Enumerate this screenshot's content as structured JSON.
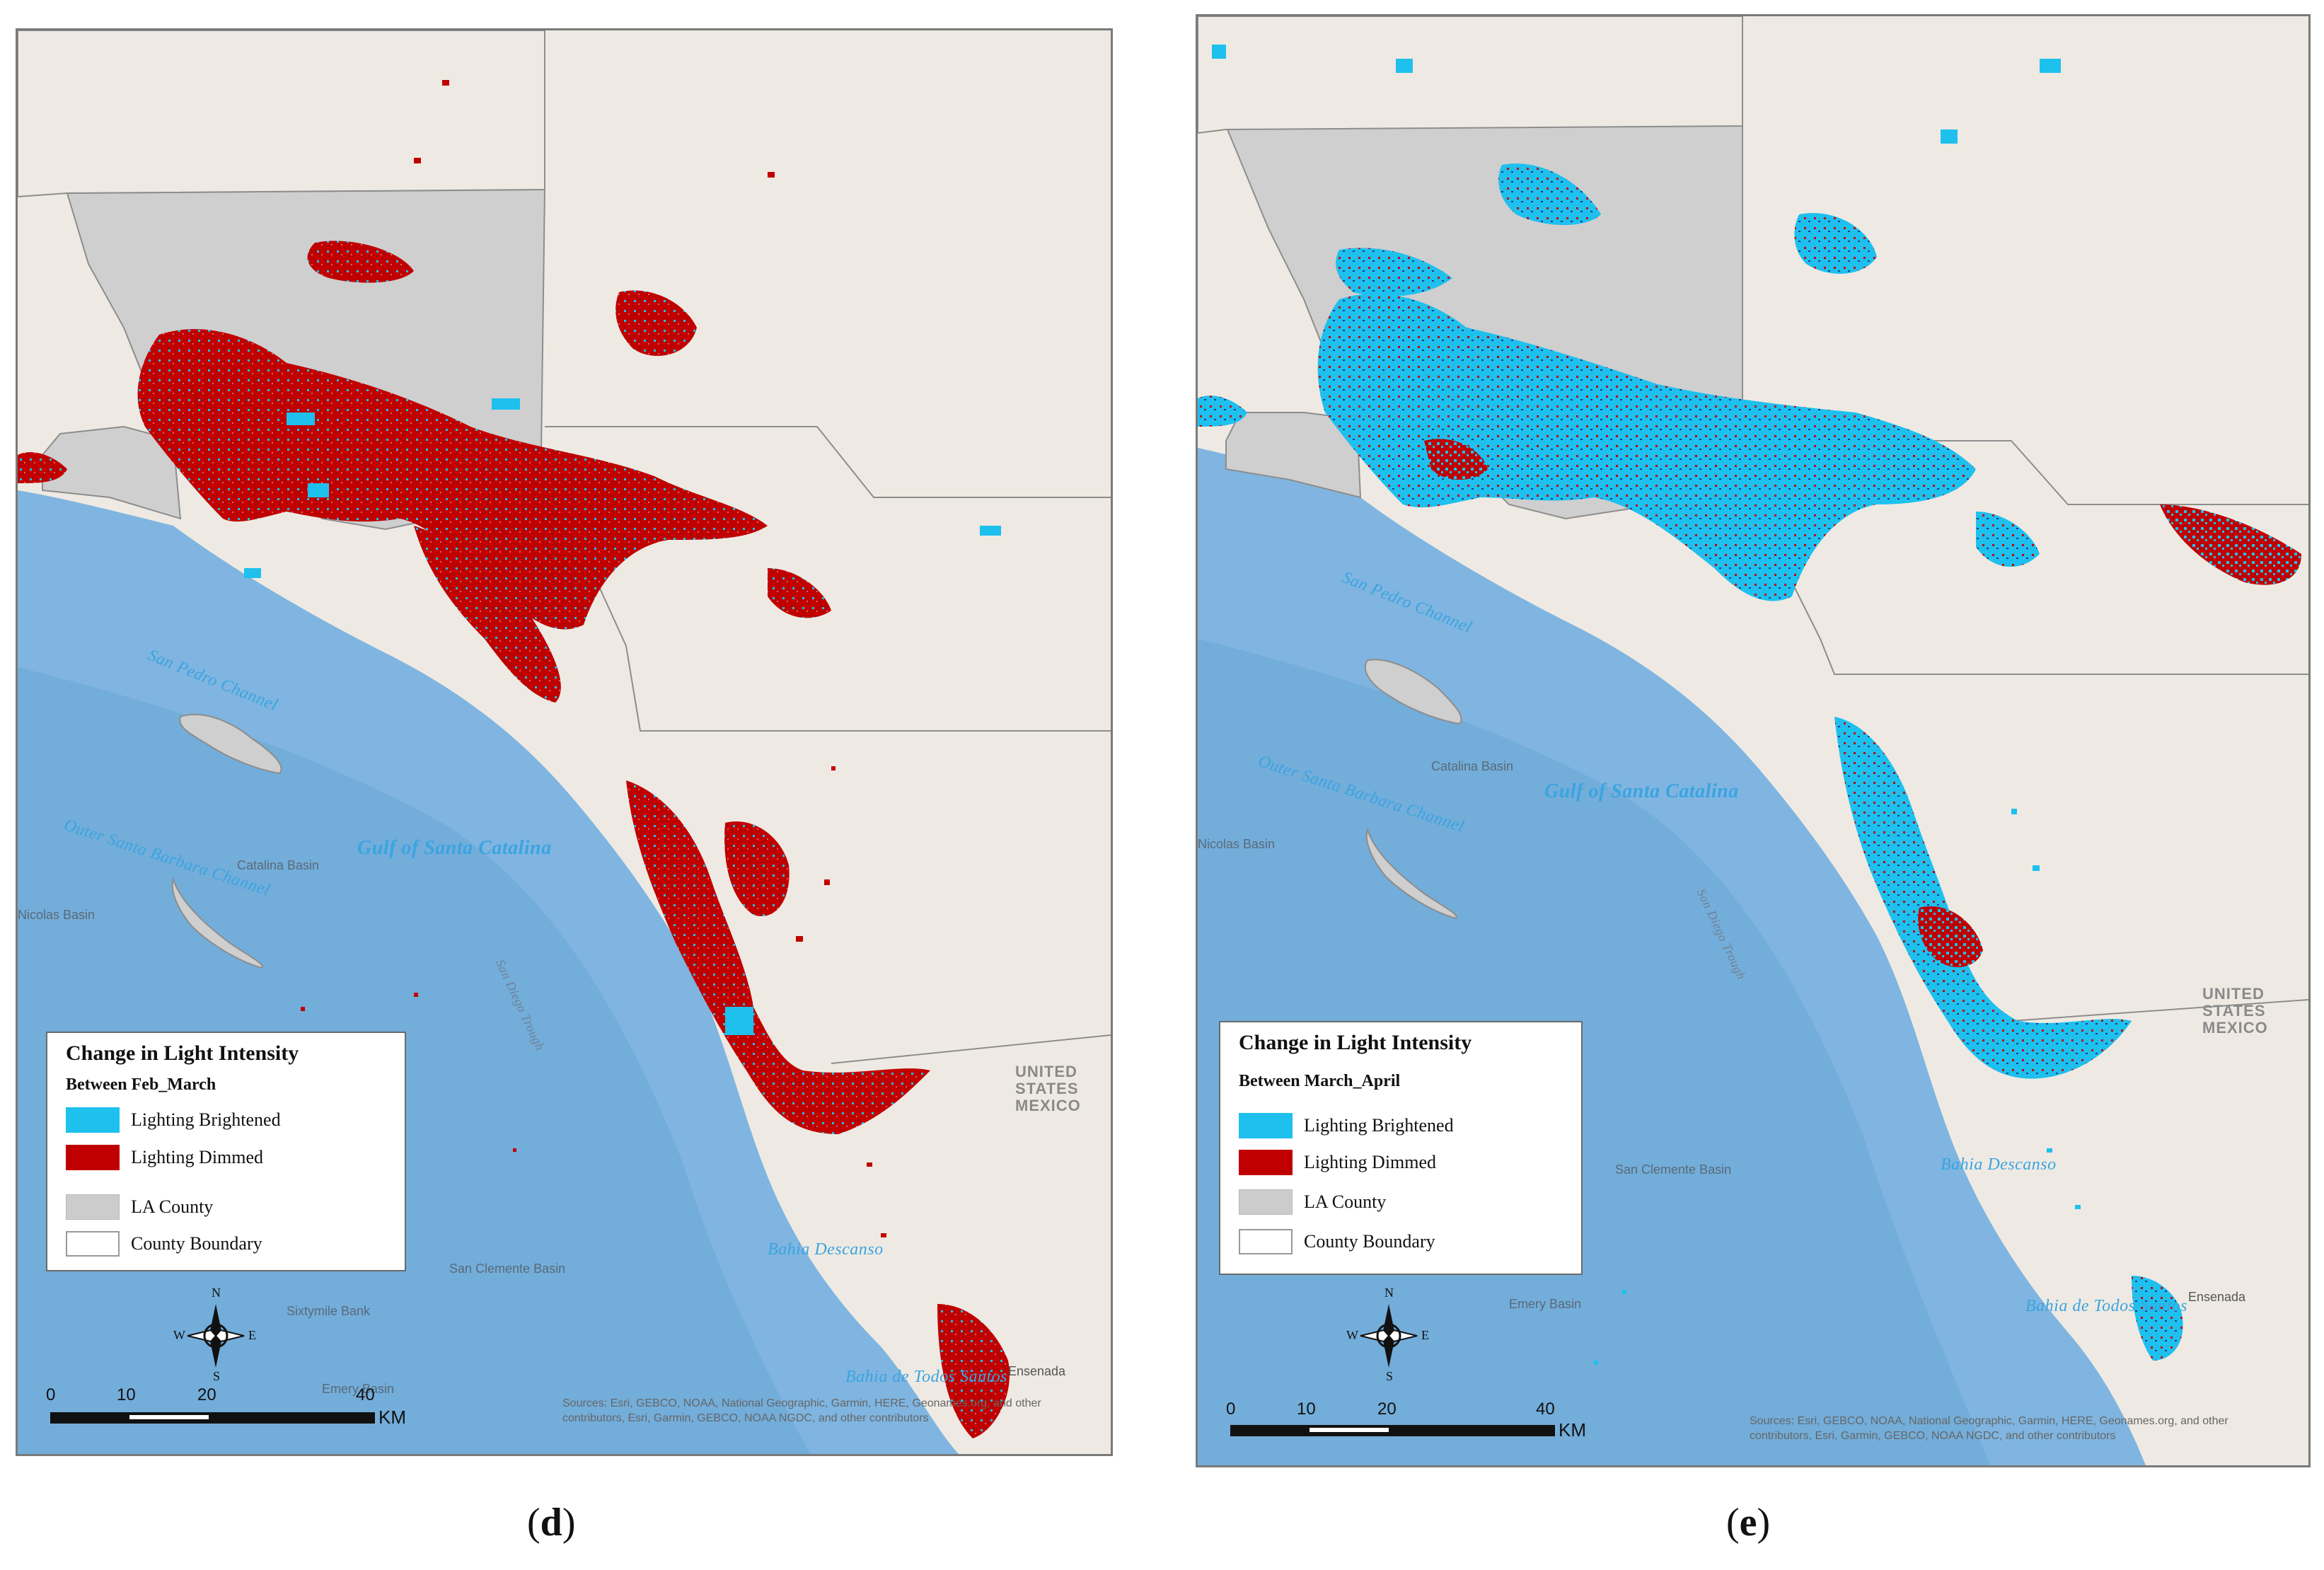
{
  "colors": {
    "brightened": "#1ec0ee",
    "dimmed": "#c00000",
    "la_county": "#cccccc",
    "ocean": "#7fb5e0",
    "land": "#eeeae3"
  },
  "panels": [
    {
      "id": "d",
      "caption_letter": "d",
      "legend": {
        "title": "Change in Light Intensity",
        "subtitle": "Between Feb_March",
        "items": [
          {
            "label": "Lighting Brightened",
            "swatch": "brightened"
          },
          {
            "label": "Lighting Dimmed",
            "swatch": "dimmed"
          },
          {
            "label": "LA County",
            "swatch": "la_county"
          },
          {
            "label": "County Boundary",
            "swatch": "county_boundary"
          }
        ]
      },
      "scale": {
        "ticks": [
          "0",
          "10",
          "20",
          "40"
        ],
        "unit": "KM"
      },
      "compass": {
        "n": "N",
        "s": "S",
        "e": "E",
        "w": "W"
      },
      "attribution": "Sources: Esri, GEBCO, NOAA, National Geographic, Garmin, HERE, Geonames.org, and other contributors, Esri, Garmin, GEBCO, NOAA NGDC, and other contributors",
      "ocean_labels": [
        "San Pedro Channel",
        "Gulf of Santa Catalina",
        "Outer Santa Barbara Channel",
        "San Diego Trough",
        "Bahia Descanso",
        "Bahia de Todos Santos"
      ],
      "feature_labels": [
        "Catalina Basin",
        "San Clemente Basin",
        "Sixtymile Bank",
        "Emery Basin",
        "Nicolas Basin",
        "Ensenada"
      ],
      "border_label": "UNITED STATES MEXICO"
    },
    {
      "id": "e",
      "caption_letter": "e",
      "legend": {
        "title": "Change in Light Intensity",
        "subtitle": "Between March_April",
        "items": [
          {
            "label": "Lighting Brightened",
            "swatch": "brightened"
          },
          {
            "label": "Lighting Dimmed",
            "swatch": "dimmed"
          },
          {
            "label": "LA County",
            "swatch": "la_county"
          },
          {
            "label": "County Boundary",
            "swatch": "county_boundary"
          }
        ]
      },
      "scale": {
        "ticks": [
          "0",
          "10",
          "20",
          "40"
        ],
        "unit": "KM"
      },
      "compass": {
        "n": "N",
        "s": "S",
        "e": "E",
        "w": "W"
      },
      "attribution": "Sources: Esri, GEBCO, NOAA, National Geographic, Garmin, HERE, Geonames.org, and other contributors, Esri, Garmin, GEBCO, NOAA NGDC, and other contributors",
      "ocean_labels": [
        "San Pedro Channel",
        "Gulf of Santa Catalina",
        "Outer Santa Barbara Channel",
        "San Diego Trough",
        "Bahia Descanso",
        "Bahia de Todos Santos"
      ],
      "feature_labels": [
        "Catalina Basin",
        "San Clemente Basin",
        "Emery Basin",
        "Nicolas Basin",
        "Ensenada"
      ],
      "border_label": "UNITED STATES MEXICO"
    }
  ]
}
